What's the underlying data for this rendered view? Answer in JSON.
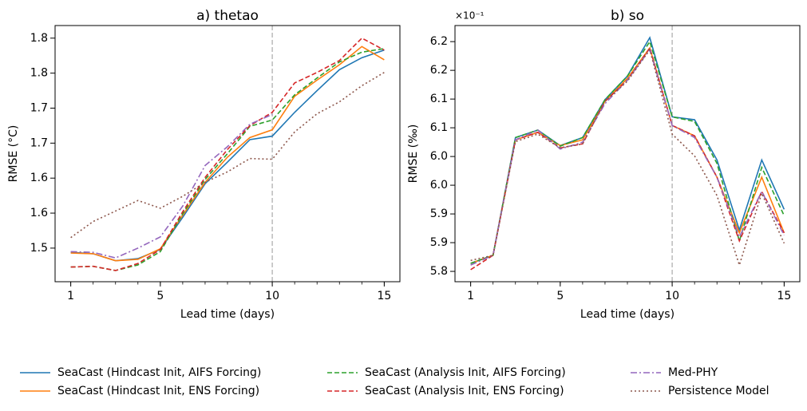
{
  "chart_data": [
    {
      "type": "line",
      "title": "a) thetao",
      "xlabel": "Lead time (days)",
      "ylabel": "RMSE (°C)",
      "x": [
        1,
        2,
        3,
        4,
        5,
        6,
        7,
        8,
        9,
        10,
        11,
        12,
        13,
        14,
        15
      ],
      "xlim": [
        0.3,
        15.7
      ],
      "xticks": [
        1,
        5,
        10,
        15
      ],
      "xminor": 1,
      "vline": 10,
      "ylim": [
        1.452,
        1.818
      ],
      "yticks": [
        {
          "value": 1.5,
          "label": "1.5"
        },
        {
          "value": 1.55,
          "label": "1.6"
        },
        {
          "value": 1.6,
          "label": "1.6"
        },
        {
          "value": 1.65,
          "label": "1.7"
        },
        {
          "value": 1.7,
          "label": "1.7"
        },
        {
          "value": 1.75,
          "label": "1.8"
        },
        {
          "value": 1.8,
          "label": "1.8"
        }
      ],
      "series": [
        {
          "values": [
            1.494,
            1.492,
            1.482,
            1.485,
            1.498,
            1.544,
            1.592,
            1.623,
            1.655,
            1.66,
            1.694,
            1.725,
            1.755,
            1.772,
            1.783
          ]
        },
        {
          "values": [
            1.493,
            1.492,
            1.482,
            1.484,
            1.499,
            1.547,
            1.594,
            1.63,
            1.658,
            1.669,
            1.717,
            1.74,
            1.762,
            1.788,
            1.769
          ]
        },
        {
          "values": [
            1.473,
            1.474,
            1.468,
            1.476,
            1.495,
            1.549,
            1.598,
            1.635,
            1.674,
            1.683,
            1.719,
            1.743,
            1.766,
            1.78,
            1.785
          ]
        },
        {
          "values": [
            1.473,
            1.474,
            1.468,
            1.478,
            1.498,
            1.552,
            1.601,
            1.641,
            1.675,
            1.694,
            1.736,
            1.751,
            1.768,
            1.8,
            1.783
          ]
        },
        {
          "values": [
            1.495,
            1.494,
            1.486,
            1.5,
            1.516,
            1.56,
            1.618,
            1.645,
            1.677,
            1.691,
            null,
            null,
            null,
            null,
            null
          ]
        },
        {
          "values": [
            1.515,
            1.538,
            1.553,
            1.568,
            1.557,
            1.574,
            1.594,
            1.609,
            1.628,
            1.627,
            1.666,
            1.692,
            1.709,
            1.732,
            1.751
          ]
        }
      ]
    },
    {
      "type": "line",
      "title": "b) so",
      "xlabel": "Lead time (days)",
      "ylabel": "RMSE (‰)",
      "offset_label": "×10⁻¹",
      "x": [
        1,
        2,
        3,
        4,
        5,
        6,
        7,
        8,
        9,
        10,
        11,
        12,
        13,
        14,
        15
      ],
      "xlim": [
        0.3,
        15.7
      ],
      "xticks": [
        1,
        5,
        10,
        15
      ],
      "xminor": 1,
      "vline": 10,
      "ylim": [
        5.782,
        6.228
      ],
      "yticks": [
        {
          "value": 5.8,
          "label": "5.8"
        },
        {
          "value": 5.85,
          "label": "5.9"
        },
        {
          "value": 5.9,
          "label": "5.9"
        },
        {
          "value": 5.95,
          "label": "6.0"
        },
        {
          "value": 6.0,
          "label": "6.0"
        },
        {
          "value": 6.05,
          "label": "6.1"
        },
        {
          "value": 6.1,
          "label": "6.1"
        },
        {
          "value": 6.15,
          "label": "6.2"
        },
        {
          "value": 6.2,
          "label": "6.2"
        }
      ],
      "series": [
        {
          "values": [
            5.814,
            5.828,
            6.033,
            6.046,
            6.019,
            6.033,
            6.099,
            6.14,
            6.207,
            6.069,
            6.064,
            5.994,
            5.872,
            5.994,
            5.908
          ]
        },
        {
          "values": [
            5.814,
            5.828,
            6.029,
            6.042,
            6.019,
            6.029,
            6.096,
            6.136,
            6.189,
            6.054,
            6.036,
            5.964,
            5.867,
            5.964,
            5.867
          ]
        },
        {
          "values": [
            5.814,
            5.828,
            6.033,
            6.046,
            6.018,
            6.033,
            6.099,
            6.14,
            6.2,
            6.069,
            6.061,
            5.988,
            5.853,
            5.981,
            5.897
          ]
        },
        {
          "values": [
            5.803,
            5.828,
            6.029,
            6.042,
            6.015,
            6.022,
            6.096,
            6.133,
            6.189,
            6.054,
            6.036,
            5.964,
            5.853,
            5.939,
            5.867
          ]
        },
        {
          "values": [
            5.811,
            5.828,
            6.029,
            6.046,
            6.013,
            6.025,
            6.092,
            6.133,
            6.186,
            6.054,
            6.033,
            5.964,
            5.86,
            5.939,
            5.863
          ]
        },
        {
          "values": [
            5.819,
            5.828,
            6.026,
            6.039,
            6.015,
            6.022,
            6.096,
            6.131,
            6.186,
            6.039,
            6.001,
            5.932,
            5.811,
            5.936,
            5.849
          ]
        }
      ]
    }
  ],
  "legend": [
    {
      "name": "SeaCast (Hindcast Init, AIFS Forcing)",
      "color": "#1f77b4",
      "dash": "solid"
    },
    {
      "name": "SeaCast (Hindcast Init, ENS Forcing)",
      "color": "#ff7f0e",
      "dash": "solid"
    },
    {
      "name": "SeaCast (Analysis Init, AIFS Forcing)",
      "color": "#2ca02c",
      "dash": "dashed"
    },
    {
      "name": "SeaCast (Analysis Init, ENS Forcing)",
      "color": "#d62728",
      "dash": "dashed"
    },
    {
      "name": "Med-PHY",
      "color": "#9467bd",
      "dash": "dashdot"
    },
    {
      "name": "Persistence Model",
      "color": "#8c564b",
      "dash": "dotted"
    }
  ]
}
